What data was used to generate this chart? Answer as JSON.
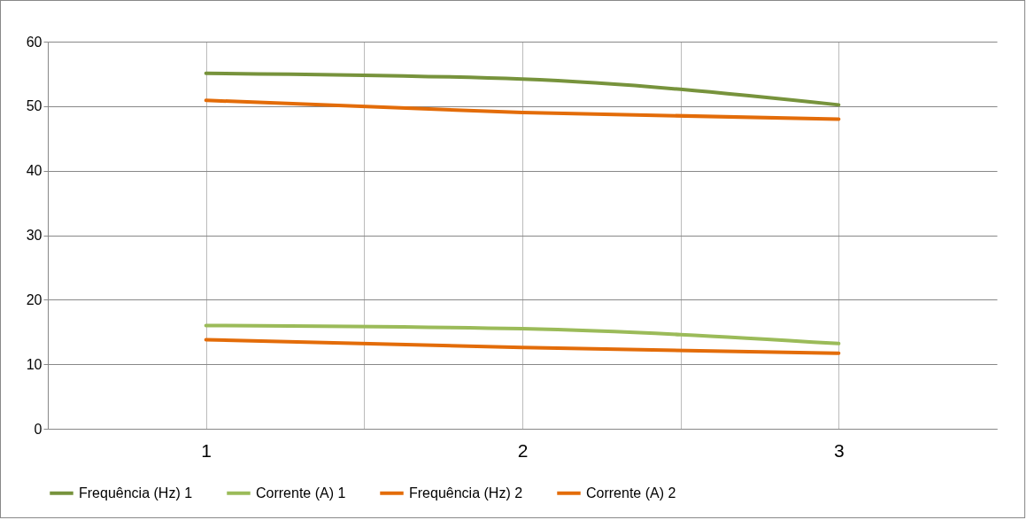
{
  "chart_data": {
    "type": "line",
    "x": [
      1,
      2,
      3
    ],
    "xlim": [
      0.5,
      3.5
    ],
    "xticks": [
      1,
      {
        "value": 1.5,
        "label": null
      },
      2,
      {
        "value": 2.5,
        "label": null
      },
      3
    ],
    "ylim": [
      0,
      60
    ],
    "yticks": [
      0,
      10,
      20,
      30,
      40,
      50,
      60
    ],
    "grid": true,
    "legend": "bottom",
    "line_style": "solid",
    "series": [
      {
        "name": "Frequência (Hz) 1",
        "color": "#77933c",
        "values": [
          55.1,
          54.2,
          50.2
        ]
      },
      {
        "name": "Corrente (A) 1",
        "color": "#9bbb59",
        "values": [
          16.0,
          15.5,
          13.2
        ]
      },
      {
        "name": "Frequência (Hz) 2",
        "color": "#e36c09",
        "values": [
          50.9,
          49.0,
          48.0
        ]
      },
      {
        "name": "Corrente (A) 2",
        "color": "#e36c09",
        "values": [
          13.8,
          12.6,
          11.7
        ]
      }
    ]
  }
}
